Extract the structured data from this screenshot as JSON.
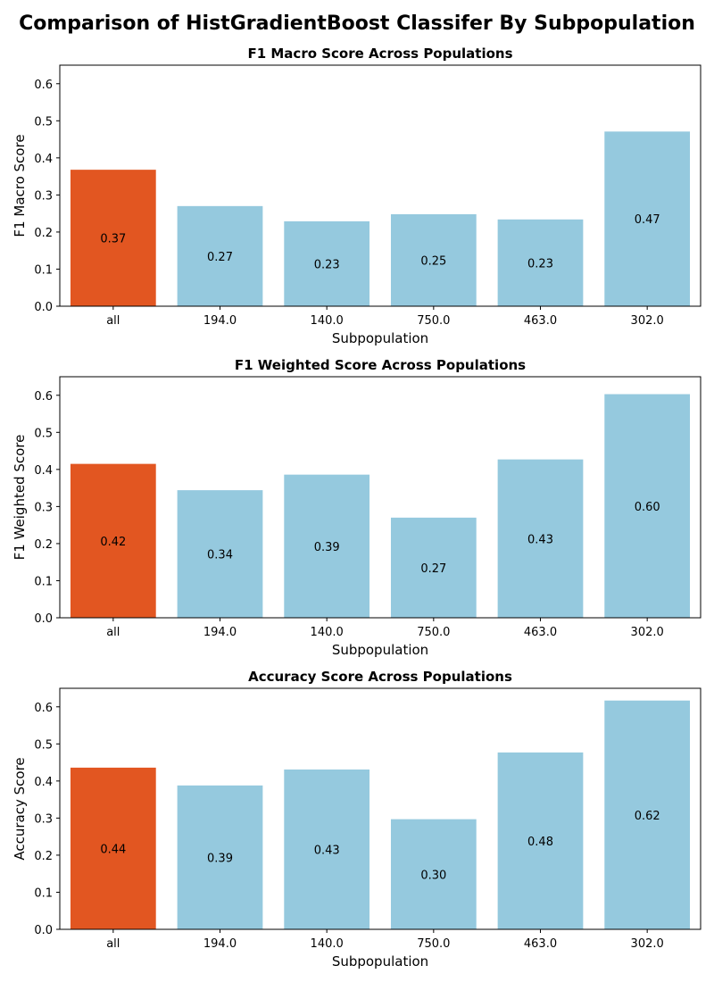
{
  "figure": {
    "suptitle": "Comparison of HistGradientBoost Classifer By Subpopulation"
  },
  "colors": {
    "highlight": "#e25621",
    "default": "#95c9de"
  },
  "chart_data": [
    {
      "type": "bar",
      "title": "F1 Macro Score Across Populations",
      "xlabel": "Subpopulation",
      "ylabel": "F1 Macro Score",
      "categories": [
        "all",
        "194.0",
        "140.0",
        "750.0",
        "463.0",
        "302.0"
      ],
      "values": [
        0.368,
        0.27,
        0.229,
        0.248,
        0.234,
        0.471
      ],
      "value_labels": [
        "0.37",
        "0.27",
        "0.23",
        "0.25",
        "0.23",
        "0.47"
      ],
      "ylim": [
        0,
        0.65
      ],
      "yticks": [
        0.0,
        0.1,
        0.2,
        0.3,
        0.4,
        0.5,
        0.6
      ],
      "ytick_labels": [
        "0.0",
        "0.1",
        "0.2",
        "0.3",
        "0.4",
        "0.5",
        "0.6"
      ],
      "grid": false
    },
    {
      "type": "bar",
      "title": "F1 Weighted Score Across Populations",
      "xlabel": "Subpopulation",
      "ylabel": "F1 Weighted Score",
      "categories": [
        "all",
        "194.0",
        "140.0",
        "750.0",
        "463.0",
        "302.0"
      ],
      "values": [
        0.415,
        0.344,
        0.386,
        0.27,
        0.427,
        0.603
      ],
      "value_labels": [
        "0.42",
        "0.34",
        "0.39",
        "0.27",
        "0.43",
        "0.60"
      ],
      "ylim": [
        0,
        0.65
      ],
      "yticks": [
        0.0,
        0.1,
        0.2,
        0.3,
        0.4,
        0.5,
        0.6
      ],
      "ytick_labels": [
        "0.0",
        "0.1",
        "0.2",
        "0.3",
        "0.4",
        "0.5",
        "0.6"
      ],
      "grid": false
    },
    {
      "type": "bar",
      "title": "Accuracy Score Across Populations",
      "xlabel": "Subpopulation",
      "ylabel": "Accuracy Score",
      "categories": [
        "all",
        "194.0",
        "140.0",
        "750.0",
        "463.0",
        "302.0"
      ],
      "values": [
        0.436,
        0.388,
        0.431,
        0.297,
        0.477,
        0.617
      ],
      "value_labels": [
        "0.44",
        "0.39",
        "0.43",
        "0.30",
        "0.48",
        "0.62"
      ],
      "ylim": [
        0,
        0.65
      ],
      "yticks": [
        0.0,
        0.1,
        0.2,
        0.3,
        0.4,
        0.5,
        0.6
      ],
      "ytick_labels": [
        "0.0",
        "0.1",
        "0.2",
        "0.3",
        "0.4",
        "0.5",
        "0.6"
      ],
      "grid": false
    }
  ]
}
